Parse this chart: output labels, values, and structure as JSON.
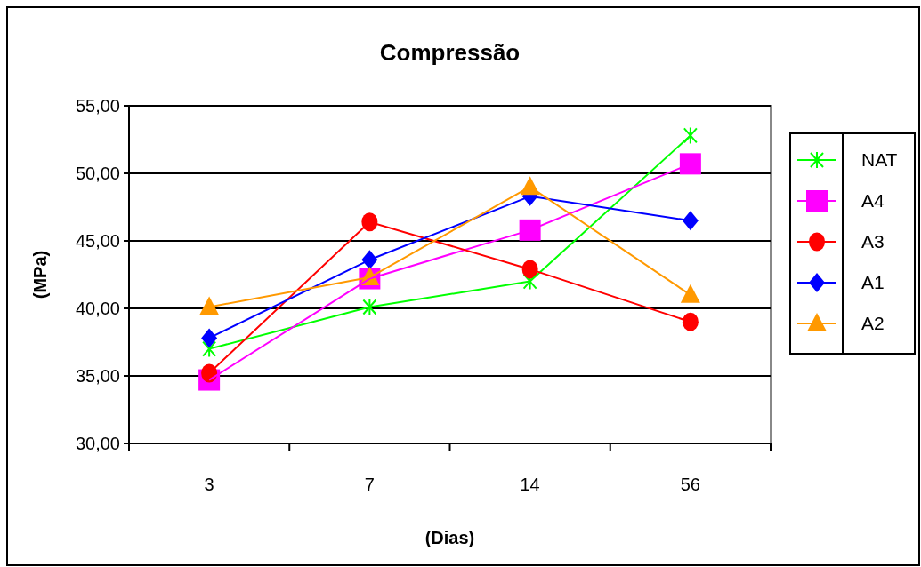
{
  "chart_data": {
    "type": "line",
    "title": "Compressão",
    "xlabel": "(Dias)",
    "ylabel": "(MPa)",
    "categories": [
      "3",
      "7",
      "14",
      "56"
    ],
    "series": [
      {
        "name": "NAT",
        "color": "#00ff00",
        "marker": "cross",
        "values": [
          37.0,
          40.1,
          42.0,
          52.8
        ]
      },
      {
        "name": "A4",
        "color": "#ff00ff",
        "marker": "square",
        "values": [
          34.7,
          42.2,
          45.8,
          50.7
        ]
      },
      {
        "name": "A3",
        "color": "#ff0000",
        "marker": "circle",
        "values": [
          35.2,
          46.4,
          42.9,
          39.0
        ]
      },
      {
        "name": "A1",
        "color": "#0000ff",
        "marker": "diamond",
        "values": [
          37.8,
          43.6,
          48.3,
          46.5
        ]
      },
      {
        "name": "A2",
        "color": "#ff9900",
        "marker": "triangle",
        "values": [
          40.1,
          42.3,
          49.0,
          41.0
        ]
      }
    ],
    "ylim": [
      30,
      55
    ],
    "yticks": [
      {
        "value": 30,
        "label": "30,00"
      },
      {
        "value": 35,
        "label": "35,00"
      },
      {
        "value": 40,
        "label": "40,00"
      },
      {
        "value": 45,
        "label": "45,00"
      },
      {
        "value": 50,
        "label": "50,00"
      },
      {
        "value": 55,
        "label": "55,00"
      }
    ],
    "grid": "y",
    "legend": "right"
  }
}
